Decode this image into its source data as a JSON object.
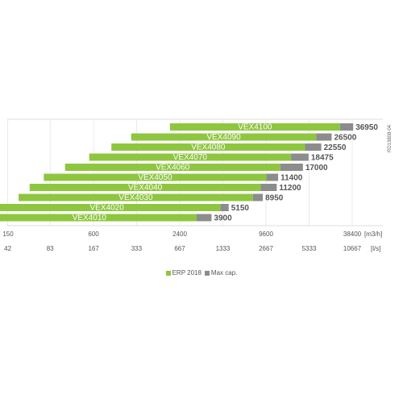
{
  "chart_data": {
    "type": "bar",
    "orientation": "horizontal",
    "stacked": true,
    "categories": [
      "VEX4100",
      "VEX4090",
      "VEX4080",
      "VEX4070",
      "VEX4060",
      "VEX4050",
      "VEX4040",
      "VEX4030",
      "VEX4020",
      "VEX4010"
    ],
    "series": [
      {
        "name": "ERP 2018",
        "color": "#8ec63f",
        "values": [
          29500,
          20400,
          17200,
          13800,
          11700,
          9400,
          8600,
          7600,
          4500,
          3050
        ]
      },
      {
        "name": "Max cap.",
        "color": "#8c8c8c",
        "values": [
          7450,
          6100,
          5350,
          4675,
          5300,
          2000,
          2600,
          1350,
          650,
          850
        ]
      }
    ],
    "max_labels": [
      "36950",
      "26500",
      "22550",
      "18475",
      "17000",
      "11400",
      "11200",
      "8950",
      "5150",
      "3900"
    ],
    "bar_start": [
      2050,
      1100,
      800,
      560,
      380,
      270,
      215,
      180,
      120,
      100
    ],
    "x_scale": "log",
    "xlim": [
      150,
      38400
    ],
    "x_ticks_m3h": [
      "150",
      "600",
      "2400",
      "9600",
      "38400"
    ],
    "x_tick_values_m3h": [
      150,
      600,
      2400,
      9600,
      38400
    ],
    "x_unit_m3h": "[m3/h]",
    "x_ticks_ls": [
      "42",
      "83",
      "167",
      "333",
      "667",
      "1333",
      "2667",
      "5333",
      "10667"
    ],
    "x_tick_values_ls": [
      42,
      83,
      167,
      333,
      667,
      1333,
      2667,
      5333,
      10667
    ],
    "x_unit_ls": "[l/s]",
    "grid": true,
    "side_code": "RD13808-04",
    "legend_placement": "bottom-center"
  },
  "legend": {
    "erp_label": "ERP 2018",
    "max_label": "Max cap.",
    "erp_color": "#8ec63f",
    "max_color": "#8c8c8c"
  }
}
